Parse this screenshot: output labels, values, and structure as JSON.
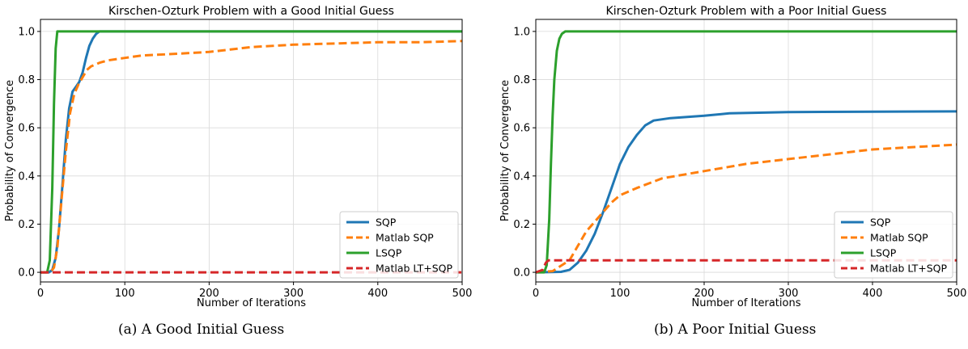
{
  "chart_data": [
    {
      "type": "line",
      "title": "Kirschen-Ozturk Problem with a Good Initial Guess",
      "xlabel": "Number of Iterations",
      "ylabel": "Probability of Convergence",
      "xlim": [
        0,
        500
      ],
      "ylim": [
        -0.04,
        1.05
      ],
      "xticks": [
        0,
        100,
        200,
        300,
        400,
        500
      ],
      "yticks": [
        0.0,
        0.2,
        0.4,
        0.6,
        0.8,
        1.0
      ],
      "xtick_labels": [
        "0",
        "100",
        "200",
        "300",
        "400",
        "500"
      ],
      "ytick_labels": [
        "0.0",
        "0.2",
        "0.4",
        "0.6",
        "0.8",
        "1.0"
      ],
      "grid": true,
      "legend_position": "lower-right",
      "series": [
        {
          "name": "SQP",
          "color": "#1f77b4",
          "style": "solid",
          "x": [
            0,
            10,
            14,
            18,
            22,
            26,
            30,
            34,
            38,
            42,
            46,
            50,
            54,
            58,
            62,
            66,
            70,
            74,
            78,
            500
          ],
          "y": [
            0,
            0,
            0.01,
            0.06,
            0.18,
            0.36,
            0.55,
            0.68,
            0.75,
            0.77,
            0.79,
            0.83,
            0.89,
            0.94,
            0.97,
            0.99,
            1.0,
            1.0,
            1.0,
            1.0
          ]
        },
        {
          "name": "Matlab SQP",
          "color": "#ff7f0e",
          "style": "dashed",
          "x": [
            0,
            12,
            16,
            20,
            25,
            30,
            35,
            40,
            45,
            50,
            55,
            60,
            70,
            80,
            100,
            120,
            150,
            200,
            250,
            300,
            350,
            400,
            450,
            500
          ],
          "y": [
            0,
            0,
            0.02,
            0.1,
            0.3,
            0.5,
            0.66,
            0.74,
            0.78,
            0.81,
            0.84,
            0.855,
            0.87,
            0.88,
            0.89,
            0.9,
            0.905,
            0.915,
            0.935,
            0.945,
            0.95,
            0.955,
            0.955,
            0.96
          ]
        },
        {
          "name": "LSQP",
          "color": "#2ca02c",
          "style": "solid",
          "x": [
            0,
            8,
            11,
            14,
            16,
            18,
            20,
            22,
            500
          ],
          "y": [
            0,
            0,
            0.05,
            0.35,
            0.7,
            0.93,
            1.0,
            1.0,
            1.0
          ]
        },
        {
          "name": "Matlab LT+SQP",
          "color": "#d62728",
          "style": "dashed",
          "x": [
            0,
            500
          ],
          "y": [
            0.0,
            0.0
          ]
        }
      ]
    },
    {
      "type": "line",
      "title": "Kirschen-Ozturk Problem with a Poor Initial Guess",
      "xlabel": "Number of Iterations",
      "ylabel": "Probability of Convergence",
      "xlim": [
        0,
        500
      ],
      "ylim": [
        -0.04,
        1.05
      ],
      "xticks": [
        0,
        100,
        200,
        300,
        400,
        500
      ],
      "yticks": [
        0.0,
        0.2,
        0.4,
        0.6,
        0.8,
        1.0
      ],
      "xtick_labels": [
        "0",
        "100",
        "200",
        "300",
        "400",
        "500"
      ],
      "ytick_labels": [
        "0.0",
        "0.2",
        "0.4",
        "0.6",
        "0.8",
        "1.0"
      ],
      "grid": true,
      "legend_position": "lower-right",
      "series": [
        {
          "name": "SQP",
          "color": "#1f77b4",
          "style": "solid",
          "x": [
            0,
            30,
            40,
            50,
            60,
            70,
            80,
            90,
            100,
            110,
            120,
            130,
            140,
            160,
            200,
            230,
            300,
            400,
            500
          ],
          "y": [
            0,
            0.002,
            0.01,
            0.04,
            0.09,
            0.16,
            0.25,
            0.35,
            0.45,
            0.52,
            0.57,
            0.61,
            0.63,
            0.64,
            0.65,
            0.66,
            0.665,
            0.667,
            0.668
          ]
        },
        {
          "name": "Matlab SQP",
          "color": "#ff7f0e",
          "style": "dashed",
          "x": [
            0,
            20,
            40,
            50,
            60,
            70,
            80,
            90,
            100,
            120,
            150,
            200,
            250,
            300,
            350,
            400,
            450,
            500
          ],
          "y": [
            0,
            0.005,
            0.05,
            0.11,
            0.17,
            0.21,
            0.25,
            0.29,
            0.32,
            0.35,
            0.39,
            0.42,
            0.45,
            0.47,
            0.49,
            0.51,
            0.52,
            0.53
          ]
        },
        {
          "name": "LSQP",
          "color": "#2ca02c",
          "style": "solid",
          "x": [
            0,
            10,
            13,
            16,
            18,
            20,
            22,
            25,
            28,
            31,
            35,
            500
          ],
          "y": [
            0,
            0,
            0.03,
            0.22,
            0.45,
            0.65,
            0.8,
            0.92,
            0.97,
            0.99,
            1.0,
            1.0
          ]
        },
        {
          "name": "Matlab LT+SQP",
          "color": "#d62728",
          "style": "dashed",
          "x": [
            0,
            8,
            12,
            15,
            500
          ],
          "y": [
            0,
            0.01,
            0.04,
            0.05,
            0.05
          ]
        }
      ]
    }
  ],
  "captions": {
    "a": "(a)  A Good Initial Guess",
    "b": "(b)  A Poor Initial Guess"
  }
}
